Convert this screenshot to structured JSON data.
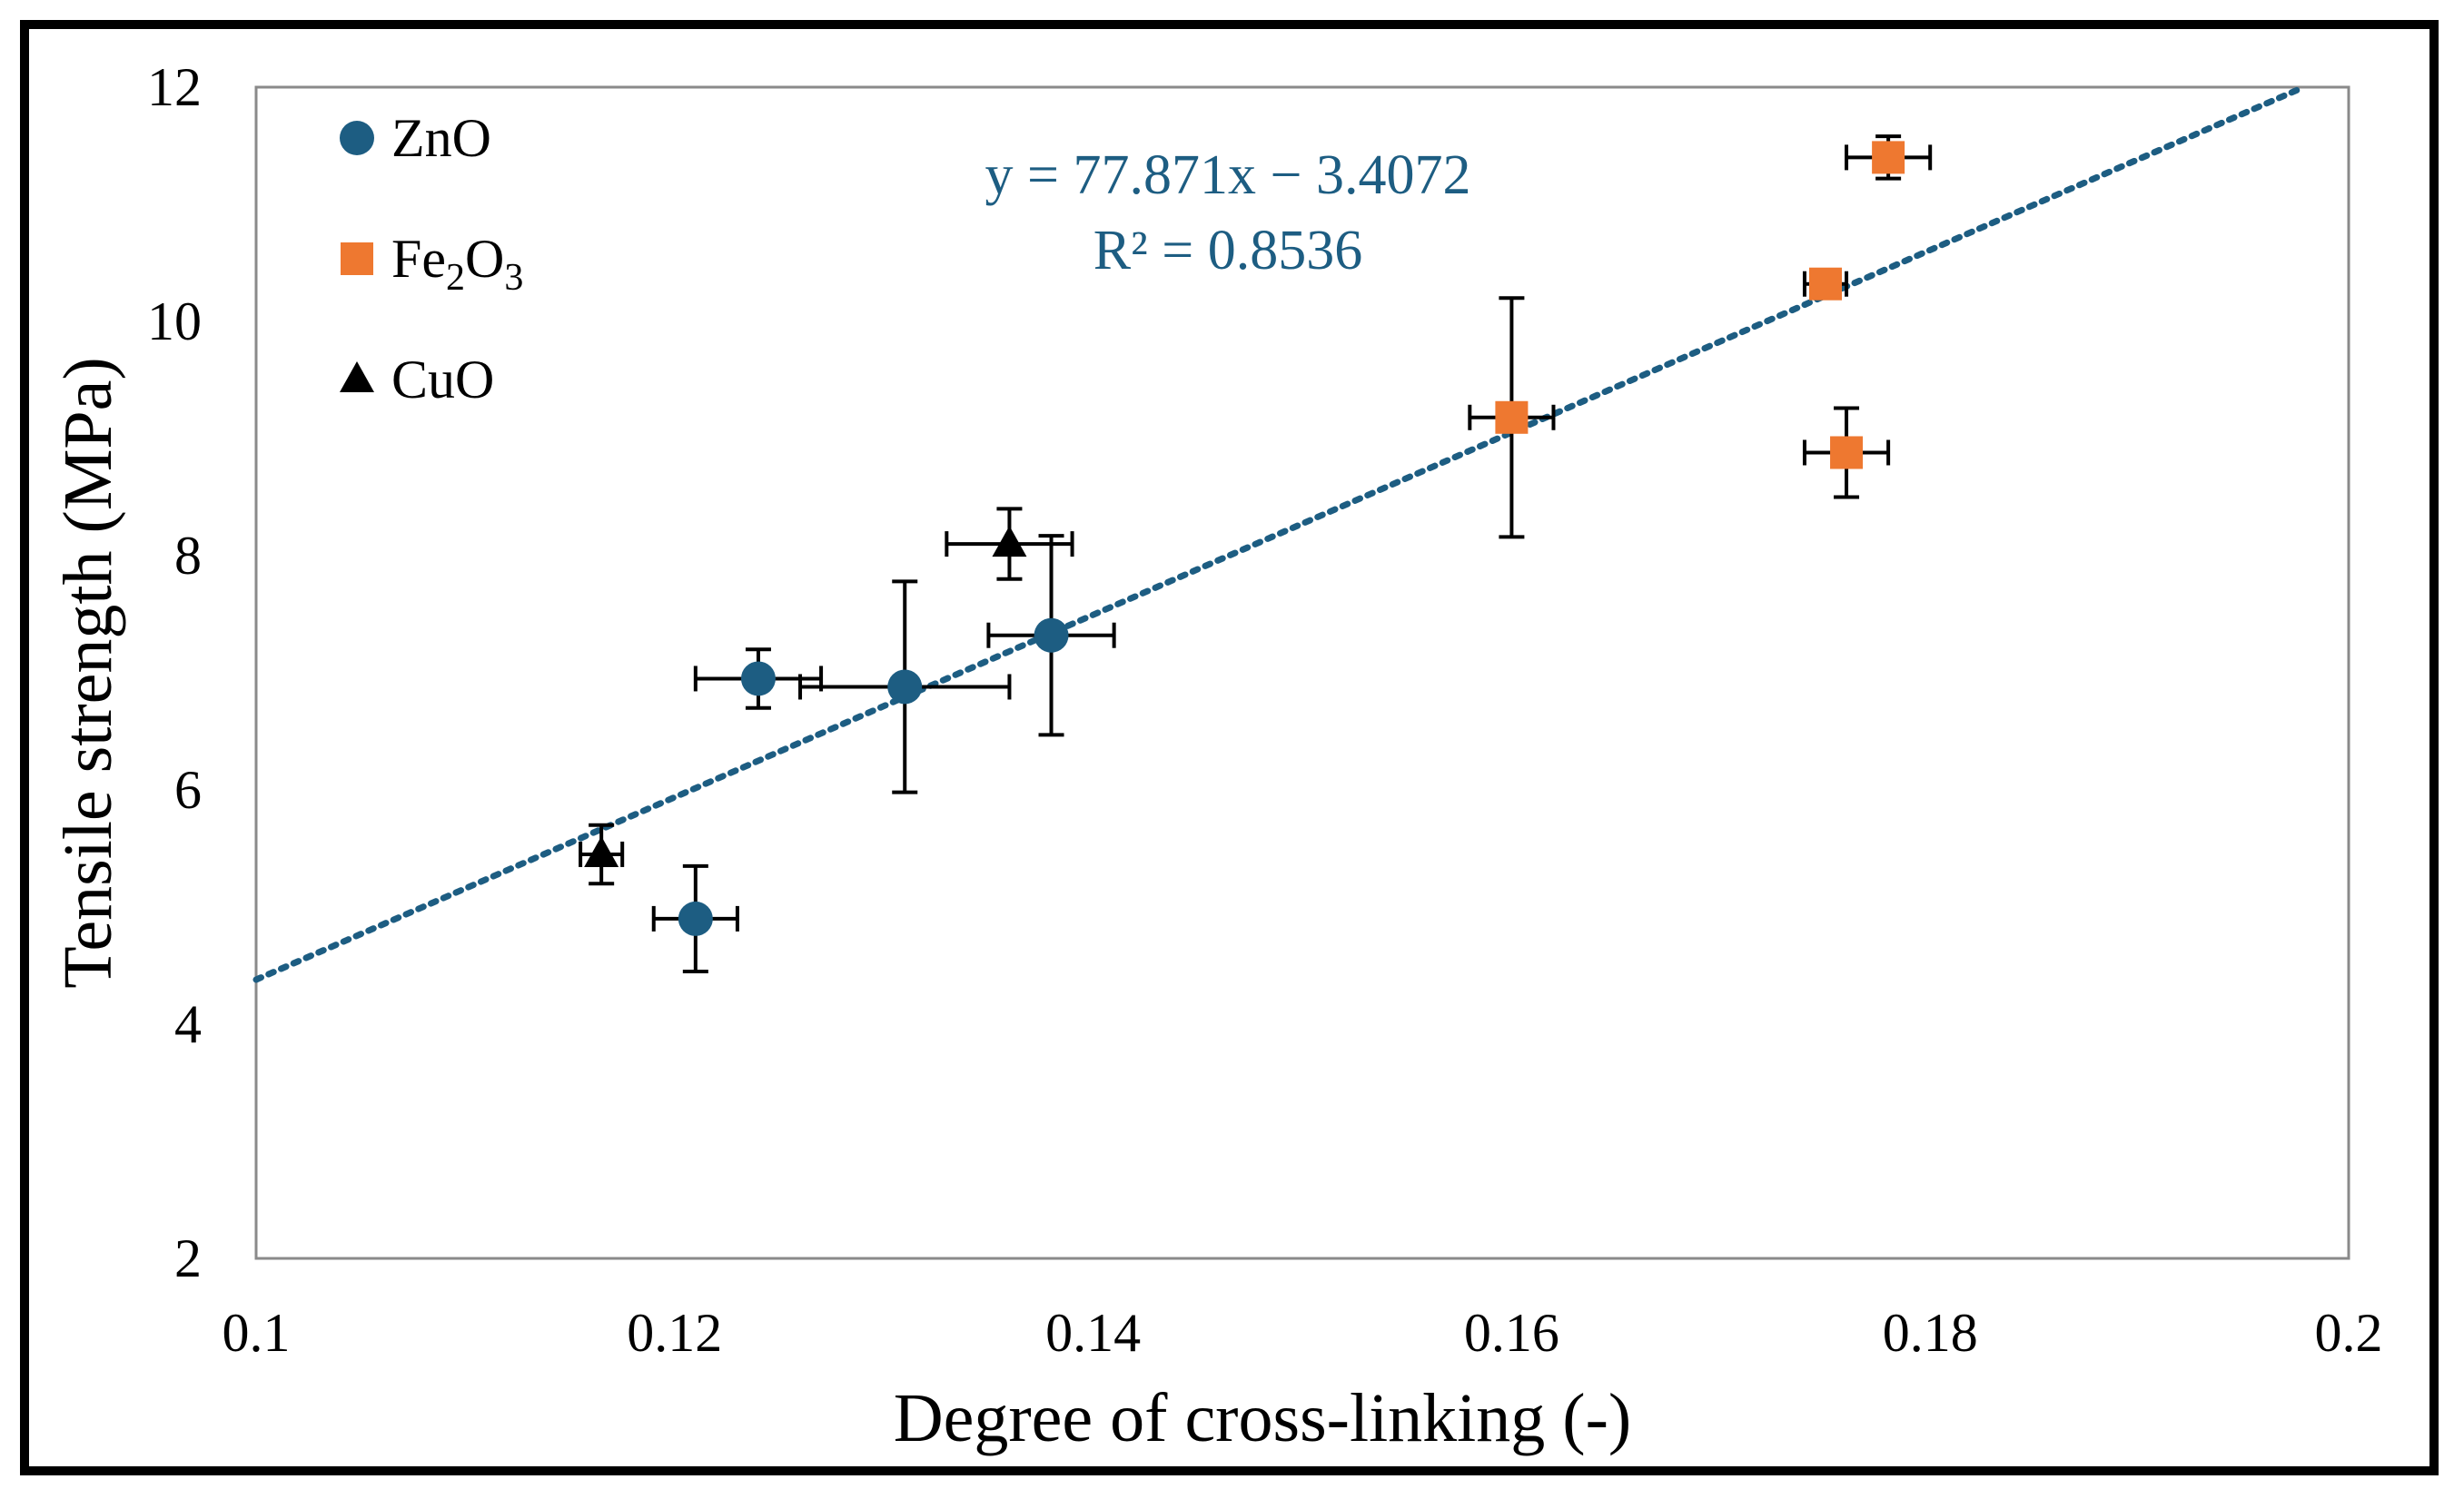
{
  "chart_data": {
    "type": "scatter",
    "xlabel": "Degree of cross-linking (-)",
    "ylabel": "Tensile strength (MPa)",
    "xlim": [
      0.1,
      0.2
    ],
    "ylim": [
      2,
      12
    ],
    "x_ticks": [
      0.1,
      0.12,
      0.14,
      0.16,
      0.18,
      0.2
    ],
    "x_tick_labels": [
      "0.1",
      "0.12",
      "0.14",
      "0.16",
      "0.18",
      "0.2"
    ],
    "y_ticks": [
      2,
      4,
      6,
      8,
      10,
      12
    ],
    "y_tick_labels": [
      "2",
      "4",
      "6",
      "8",
      "10",
      "12"
    ],
    "grid": false,
    "legend_position": "top-left",
    "series": [
      {
        "name": "ZnO",
        "legend_main": "ZnO",
        "legend_sub": "",
        "legend_tail": "",
        "marker": "circle",
        "color": "#1d5d82",
        "points": [
          {
            "x": 0.121,
            "y": 4.9,
            "xerr": 0.002,
            "yerr": 0.45
          },
          {
            "x": 0.124,
            "y": 6.95,
            "xerr": 0.003,
            "yerr": 0.25
          },
          {
            "x": 0.131,
            "y": 6.88,
            "xerr": 0.005,
            "yerr": 0.9
          },
          {
            "x": 0.138,
            "y": 7.32,
            "xerr": 0.003,
            "yerr": 0.85
          }
        ]
      },
      {
        "name": "Fe2O3",
        "legend_main": "Fe",
        "legend_sub": "2",
        "legend_tail": "O",
        "legend_sub2": "3",
        "marker": "square",
        "color": "#ee7830",
        "points": [
          {
            "x": 0.16,
            "y": 9.18,
            "xerr": 0.002,
            "yerr": 1.02
          },
          {
            "x": 0.175,
            "y": 10.32,
            "xerr": 0.001,
            "yerr": 0.1
          },
          {
            "x": 0.176,
            "y": 8.88,
            "xerr": 0.002,
            "yerr": 0.38
          },
          {
            "x": 0.178,
            "y": 11.4,
            "xerr": 0.002,
            "yerr": 0.18
          }
        ]
      },
      {
        "name": "CuO",
        "legend_main": "CuO",
        "legend_sub": "",
        "legend_tail": "",
        "marker": "triangle",
        "color": "#000000",
        "points": [
          {
            "x": 0.1165,
            "y": 5.45,
            "xerr": 0.001,
            "yerr": 0.25
          },
          {
            "x": 0.136,
            "y": 8.1,
            "xerr": 0.003,
            "yerr": 0.3
          }
        ]
      }
    ],
    "trendline": {
      "type": "linear",
      "style": "dotted",
      "color": "#1d5d82",
      "slope": 77.871,
      "intercept": -3.4072,
      "equation": "y = 77.871x − 3.4072",
      "r_squared": "R² = 0.8536"
    }
  }
}
